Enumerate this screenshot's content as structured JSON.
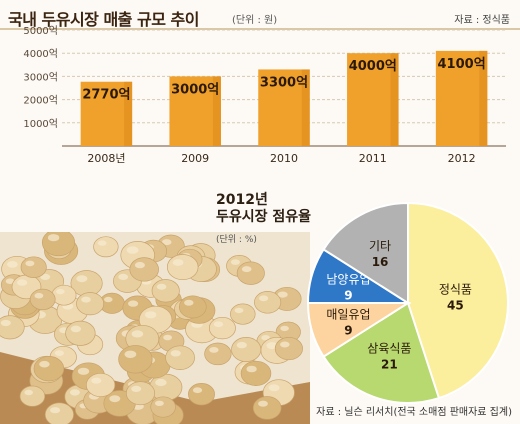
{
  "header": {
    "title": "국내 두유시장 매출 규모 추이",
    "unit": "(단위 : 원)",
    "source": "자료 : 정식품"
  },
  "pie_header": {
    "year": "2012년",
    "title": "두유시장 점유율",
    "unit": "(단위 : %)"
  },
  "footer": {
    "source": "자료 : 닐슨 리서치(전국 소매점 판매자료 집계)"
  },
  "colors": {
    "bar": "#f0a12c",
    "bar_dark": "#d98515",
    "pie_jeongsikpum": "#fbee9c",
    "pie_samyuk": "#b8d870",
    "pie_maeil": "#fdd4a0",
    "pie_namyang": "#2f78c8",
    "pie_other": "#b2b2b2"
  },
  "chart_data": [
    {
      "type": "bar",
      "title": "국내 두유시장 매출 규모 추이",
      "categories": [
        "2008년",
        "2009",
        "2010",
        "2011",
        "2012"
      ],
      "values": [
        2770,
        3000,
        3300,
        4000,
        4100
      ],
      "value_labels": [
        "2770억",
        "3000억",
        "3300억",
        "4000억",
        "4100억"
      ],
      "yticks": [
        1000,
        2000,
        3000,
        4000,
        5000
      ],
      "ytick_labels": [
        "1000억",
        "2000억",
        "3000억",
        "4000억",
        "5000억"
      ],
      "ylim": [
        0,
        5000
      ],
      "grid": true
    },
    {
      "type": "pie",
      "title": "두유시장 점유율",
      "slices": [
        {
          "label": "정식품",
          "value": 45,
          "value_label": "45"
        },
        {
          "label": "삼육식품",
          "value": 21,
          "value_label": "21"
        },
        {
          "label": "매일유업",
          "value": 9,
          "value_label": "9"
        },
        {
          "label": "남양유업",
          "value": 9,
          "value_label": "9"
        },
        {
          "label": "기타",
          "value": 16,
          "value_label": "16"
        }
      ]
    }
  ]
}
